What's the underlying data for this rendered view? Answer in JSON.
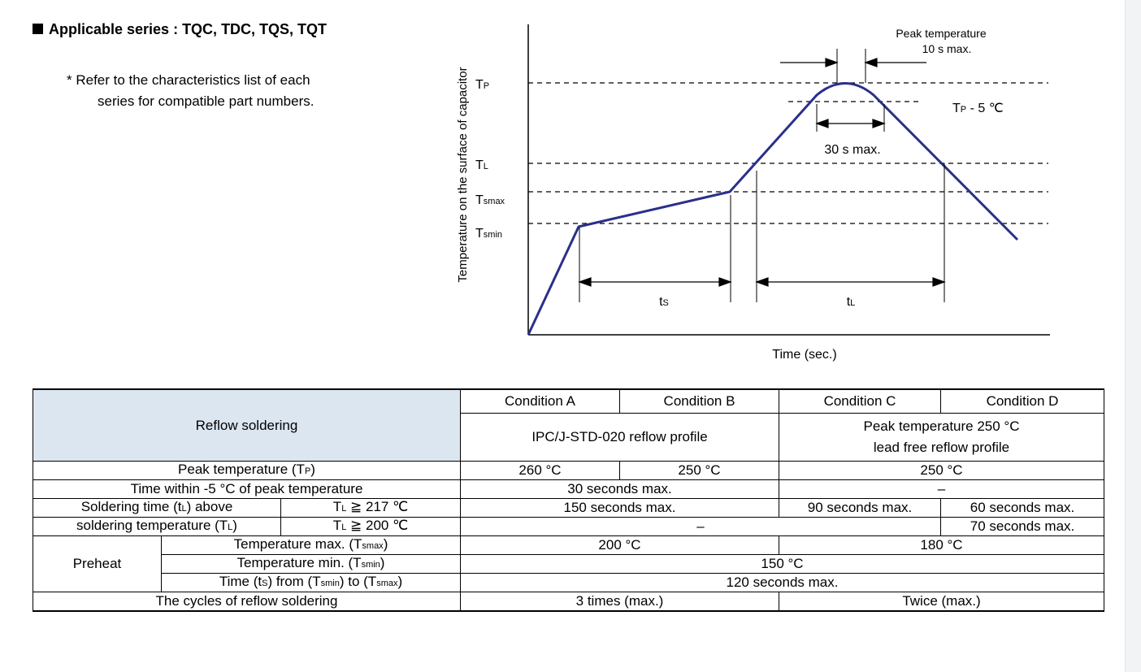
{
  "heading": "Applicable series : TQC, TDC, TQS, TQT",
  "note": {
    "line1": "* Refer to the characteristics list of each",
    "line2": "series for compatible part numbers."
  },
  "graph": {
    "y_axis_label": "Temperature on the surface of capacitor",
    "x_axis_label": "Time (sec.)",
    "labels": {
      "tp": "T",
      "tp_sub": "P",
      "tl": "T",
      "tl_sub": "L",
      "tsmax": "T",
      "tsmax_sub": "smax",
      "tsmin": "T",
      "tsmin_sub": "smin",
      "ts": "t",
      "ts_sub": "S",
      "tl_time": "t",
      "tl_time_sub": "L",
      "tp5_T": "T",
      "tp5_sub": "P",
      "tp5_rest": " - 5 ℃",
      "peak_line1": "Peak temperature",
      "peak_line2": "10 s max.",
      "thirty": "30 s max."
    },
    "colors": {
      "curve": "#2b2f8a",
      "lines": "#000000"
    }
  },
  "table": {
    "header_title": "Reflow soldering",
    "conditions": [
      "Condition A",
      "Condition B",
      "Condition C",
      "Condition D"
    ],
    "profile_ab": "IPC/J-STD-020 reflow profile",
    "profile_cd_line1": "Peak temperature 250 °C",
    "profile_cd_line2": "lead free reflow profile",
    "rows": {
      "peak_label_a": "Peak temperature (T",
      "peak_label_sub": "P",
      "peak_label_b": ")",
      "peak_a": "260 °C",
      "peak_b": "250 °C",
      "peak_cd": "250 °C",
      "within_label": "Time within -5 °C of peak temperature",
      "within_ab": "30 seconds max.",
      "within_cd": "–",
      "soldering_label1_a": "Soldering time (t",
      "soldering_label1_sub": "L",
      "soldering_label1_b": ") above",
      "soldering_label2_a": "soldering temperature (T",
      "soldering_label2_sub": "L",
      "soldering_label2_b": ")",
      "tl217_a": "T",
      "tl217_sub": "L",
      "tl217_b": " ≧ 217 ℃",
      "tl217_ab": "150 seconds max.",
      "tl217_c": "90 seconds max.",
      "tl217_d": "60 seconds max.",
      "tl200_a": "T",
      "tl200_sub": "L",
      "tl200_b": " ≧ 200 ℃",
      "tl200_abc": "–",
      "tl200_d": "70 seconds max.",
      "preheat": "Preheat",
      "tmax_label_a": "Temperature max. (T",
      "tmax_label_sub": "smax",
      "tmax_label_b": ")",
      "tmax_ab": "200 °C",
      "tmax_cd": "180 °C",
      "tmin_label_a": "Temperature min. (T",
      "tmin_label_sub": "smin",
      "tmin_label_b": ")",
      "tmin_all": "150 °C",
      "time_label_a": "Time (t",
      "time_label_sub1": "S",
      "time_label_b": ") from (T",
      "time_label_sub2": "smin",
      "time_label_c": ") to (T",
      "time_label_sub3": "smax",
      "time_label_d": ")",
      "time_all": "120 seconds max.",
      "cycles_label": "The cycles of reflow soldering",
      "cycles_ab": "3 times (max.)",
      "cycles_cd": "Twice (max.)"
    }
  }
}
